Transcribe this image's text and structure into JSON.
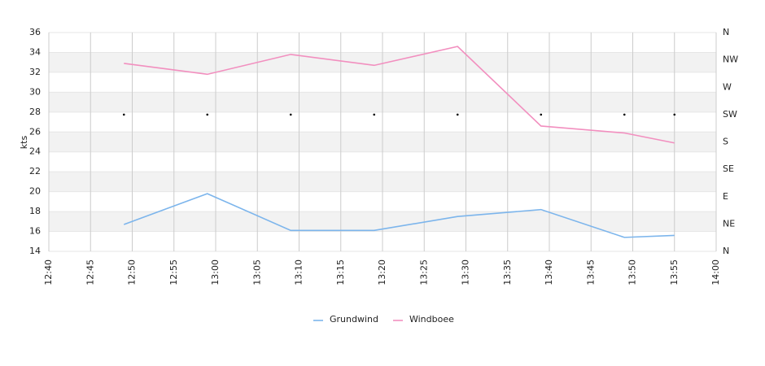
{
  "chart_data": {
    "type": "line",
    "y_label": "kts",
    "x": [
      "12:49",
      "12:59",
      "13:09",
      "13:19",
      "13:29",
      "13:39",
      "13:49",
      "13:55"
    ],
    "xlim": [
      "12:40",
      "14:00"
    ],
    "xticks": [
      "12:40",
      "12:45",
      "12:50",
      "12:55",
      "13:00",
      "13:05",
      "13:10",
      "13:15",
      "13:20",
      "13:25",
      "13:30",
      "13:35",
      "13:40",
      "13:45",
      "13:50",
      "13:55",
      "14:00"
    ],
    "ylim": [
      14,
      36
    ],
    "yticks": [
      14,
      16,
      18,
      20,
      22,
      24,
      26,
      28,
      30,
      32,
      34,
      36
    ],
    "y2lim": [
      0,
      360
    ],
    "y2ticks": [
      {
        "value": 0,
        "label": "N"
      },
      {
        "value": 45,
        "label": "NE"
      },
      {
        "value": 90,
        "label": "E"
      },
      {
        "value": 135,
        "label": "SE"
      },
      {
        "value": 180,
        "label": "S"
      },
      {
        "value": 225,
        "label": "SW"
      },
      {
        "value": 270,
        "label": "W"
      },
      {
        "value": 315,
        "label": "NW"
      },
      {
        "value": 360,
        "label": "N"
      }
    ],
    "grid": true,
    "legend": "bottom",
    "series": [
      {
        "name": "Grundwind",
        "color": "#7cb5ec",
        "values": [
          16.7,
          19.8,
          16.1,
          16.1,
          17.5,
          18.2,
          15.4,
          15.6
        ]
      },
      {
        "name": "Windboee",
        "color": "#f28fbf",
        "values": [
          32.9,
          31.8,
          33.8,
          32.7,
          34.6,
          26.6,
          25.9,
          24.9
        ]
      },
      {
        "color": "#000000",
        "axis": "y2",
        "values": [
          225,
          225,
          225,
          225,
          225,
          225,
          225,
          225
        ]
      }
    ]
  }
}
